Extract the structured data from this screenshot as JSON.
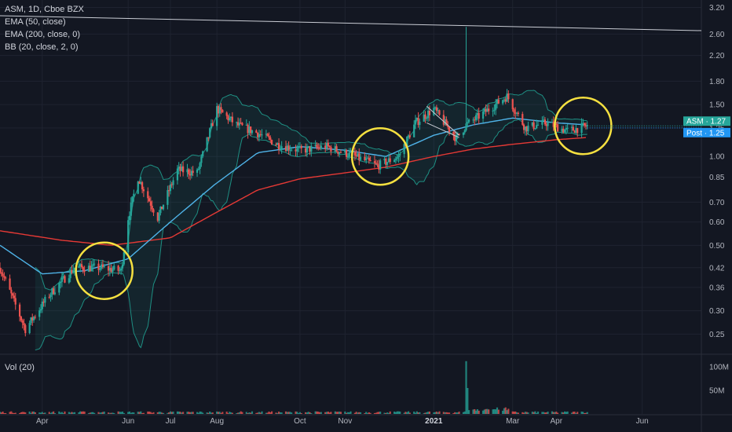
{
  "legend": {
    "symbol_line": "ASM, 1D, Cboe BZX",
    "ema50": "EMA (50, close)",
    "ema200": "EMA (200, close, 0)",
    "bb": "BB (20, close, 2, 0)",
    "volume": "Vol (20)"
  },
  "colors": {
    "background": "#131722",
    "grid": "#1f2330",
    "up": "#26a69a",
    "down": "#ef5350",
    "ema50": "#4fb3e8",
    "ema200": "#e53935",
    "bb_band": "#1e8f83",
    "bb_fill": "#1e8f83",
    "trendline": "#c9ccd4",
    "highlight": "#f5e040"
  },
  "icons": {
    "highlight_circles": "circle-annotation"
  },
  "chart_data": {
    "type": "candlestick",
    "y_scale": "log",
    "price_axis_ticks": [
      "3.20",
      "2.60",
      "2.20",
      "1.80",
      "1.50",
      "1.25",
      "1.00",
      "0.85",
      "0.70",
      "0.60",
      "0.50",
      "0.42",
      "0.36",
      "0.30",
      "0.25"
    ],
    "price_axis_values": [
      3.2,
      2.6,
      2.2,
      1.8,
      1.5,
      1.25,
      1.0,
      0.85,
      0.7,
      0.6,
      0.5,
      0.42,
      0.36,
      0.3,
      0.25
    ],
    "ylim": [
      0.215,
      3.35
    ],
    "volume_axis_ticks": [
      "100M",
      "50M"
    ],
    "volume_axis_values": [
      100,
      50
    ],
    "volume_unit": "M",
    "x_start": "2020-03-02",
    "x_end": "2021-07-13",
    "time_ticks": [
      {
        "label": "Apr",
        "date": "2020-04-01",
        "bold": false
      },
      {
        "label": "Jun",
        "date": "2020-06-01",
        "bold": false
      },
      {
        "label": "Jul",
        "date": "2020-07-01",
        "bold": false
      },
      {
        "label": "Aug",
        "date": "2020-08-03",
        "bold": false
      },
      {
        "label": "Oct",
        "date": "2020-10-01",
        "bold": false
      },
      {
        "label": "Nov",
        "date": "2020-11-02",
        "bold": false
      },
      {
        "label": "2021",
        "date": "2021-01-04",
        "bold": true
      },
      {
        "label": "Mar",
        "date": "2021-03-01",
        "bold": false
      },
      {
        "label": "Apr",
        "date": "2021-04-01",
        "bold": false
      },
      {
        "label": "Jun",
        "date": "2021-06-01",
        "bold": false
      }
    ],
    "ohlc_keypoints": [
      {
        "date": "2020-03-02",
        "close": 0.42
      },
      {
        "date": "2020-03-20",
        "close": 0.26
      },
      {
        "date": "2020-04-06",
        "close": 0.34
      },
      {
        "date": "2020-04-24",
        "close": 0.42
      },
      {
        "date": "2020-05-12",
        "close": 0.42
      },
      {
        "date": "2020-05-27",
        "close": 0.41
      },
      {
        "date": "2020-06-01",
        "close": 0.62
      },
      {
        "date": "2020-06-08",
        "close": 0.85
      },
      {
        "date": "2020-06-22",
        "close": 0.62
      },
      {
        "date": "2020-07-06",
        "close": 0.9
      },
      {
        "date": "2020-07-20",
        "close": 0.88
      },
      {
        "date": "2020-08-03",
        "close": 1.45
      },
      {
        "date": "2020-08-17",
        "close": 1.28
      },
      {
        "date": "2020-09-01",
        "close": 1.2
      },
      {
        "date": "2020-09-15",
        "close": 1.1
      },
      {
        "date": "2020-10-01",
        "close": 1.05
      },
      {
        "date": "2020-10-20",
        "close": 1.08
      },
      {
        "date": "2020-11-09",
        "close": 1.0
      },
      {
        "date": "2020-11-25",
        "close": 0.93
      },
      {
        "date": "2020-12-10",
        "close": 1.0
      },
      {
        "date": "2020-12-22",
        "close": 1.3
      },
      {
        "date": "2021-01-04",
        "close": 1.45
      },
      {
        "date": "2021-01-20",
        "close": 1.15
      },
      {
        "date": "2021-01-27",
        "close": 1.28
      },
      {
        "date": "2021-02-08",
        "close": 1.4
      },
      {
        "date": "2021-02-25",
        "close": 1.6
      },
      {
        "date": "2021-03-10",
        "close": 1.25
      },
      {
        "date": "2021-03-25",
        "close": 1.3
      },
      {
        "date": "2021-04-09",
        "close": 1.22
      },
      {
        "date": "2021-04-23",
        "close": 1.27
      }
    ],
    "spike": {
      "date": "2021-01-27",
      "high": 2.75
    },
    "ema50_keypoints": [
      {
        "date": "2020-03-02",
        "value": 0.5
      },
      {
        "date": "2020-04-01",
        "value": 0.4
      },
      {
        "date": "2020-05-01",
        "value": 0.41
      },
      {
        "date": "2020-06-01",
        "value": 0.45
      },
      {
        "date": "2020-07-01",
        "value": 0.6
      },
      {
        "date": "2020-08-01",
        "value": 0.8
      },
      {
        "date": "2020-09-01",
        "value": 1.03
      },
      {
        "date": "2020-10-01",
        "value": 1.08
      },
      {
        "date": "2020-11-02",
        "value": 1.05
      },
      {
        "date": "2020-12-01",
        "value": 1.0
      },
      {
        "date": "2021-01-04",
        "value": 1.18
      },
      {
        "date": "2021-02-01",
        "value": 1.28
      },
      {
        "date": "2021-03-01",
        "value": 1.35
      },
      {
        "date": "2021-04-01",
        "value": 1.3
      },
      {
        "date": "2021-04-23",
        "value": 1.28
      }
    ],
    "ema200_keypoints": [
      {
        "date": "2020-03-02",
        "value": 0.56
      },
      {
        "date": "2020-04-15",
        "value": 0.52
      },
      {
        "date": "2020-05-20",
        "value": 0.5
      },
      {
        "date": "2020-07-01",
        "value": 0.53
      },
      {
        "date": "2020-08-01",
        "value": 0.64
      },
      {
        "date": "2020-09-01",
        "value": 0.77
      },
      {
        "date": "2020-10-01",
        "value": 0.84
      },
      {
        "date": "2020-11-02",
        "value": 0.88
      },
      {
        "date": "2020-12-01",
        "value": 0.92
      },
      {
        "date": "2021-01-04",
        "value": 1.0
      },
      {
        "date": "2021-02-01",
        "value": 1.06
      },
      {
        "date": "2021-03-01",
        "value": 1.1
      },
      {
        "date": "2021-04-01",
        "value": 1.14
      },
      {
        "date": "2021-04-23",
        "value": 1.16
      }
    ],
    "trendline": {
      "date_start": "2020-03-02",
      "value_start": 3.0,
      "date_end": "2021-07-13",
      "value_end": 2.67
    },
    "wedge_lines": [
      {
        "date_start": "2020-12-30",
        "value_start": 1.48,
        "date_end": "2021-01-22",
        "value_end": 1.18
      },
      {
        "date_start": "2020-12-30",
        "value_start": 1.3,
        "date_end": "2021-01-22",
        "value_end": 1.16
      }
    ],
    "highlight_circles": [
      {
        "date": "2020-05-15",
        "value": 0.41
      },
      {
        "date": "2020-11-27",
        "value": 1.0
      },
      {
        "date": "2021-04-20",
        "value": 1.27
      }
    ],
    "last_price_tags": [
      {
        "label": "ASM · 1.27",
        "value": 1.27,
        "color": "#26a69a"
      },
      {
        "label": "Post · 1.25",
        "value": 1.25,
        "color": "#2196f3"
      }
    ],
    "volume_profile": {
      "baseline": 4,
      "spike_date": "2021-01-27",
      "spike_value": 112,
      "second_date": "2021-01-28",
      "second_value": 55
    }
  }
}
